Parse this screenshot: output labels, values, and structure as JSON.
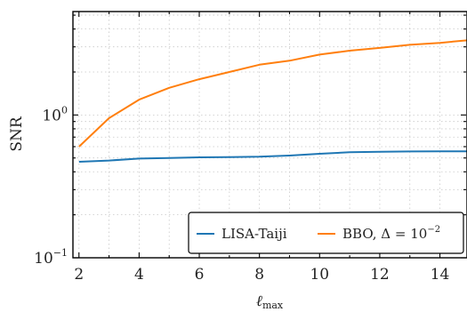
{
  "chart_data": {
    "type": "line",
    "xlabel_base": "ℓ",
    "xlabel_sub": "max",
    "ylabel": "SNR",
    "xlim": [
      1.8,
      14.9
    ],
    "ylim": [
      0.1,
      5.3
    ],
    "yscale": "log",
    "xticks": [
      2,
      4,
      6,
      8,
      10,
      12,
      14
    ],
    "yticks": [
      {
        "value": 0.1,
        "base": "10",
        "exp": "−1"
      },
      {
        "value": 1,
        "base": "10",
        "exp": "0"
      }
    ],
    "grid": true,
    "legend_position": "lower-right",
    "series": [
      {
        "name": "LISA-Taiji",
        "color": "#1f77b4",
        "x": [
          2,
          3,
          4,
          5,
          6,
          7,
          8,
          9,
          10,
          11,
          12,
          13,
          14,
          15
        ],
        "y": [
          0.47,
          0.48,
          0.495,
          0.5,
          0.505,
          0.507,
          0.51,
          0.52,
          0.535,
          0.548,
          0.553,
          0.555,
          0.556,
          0.557
        ]
      },
      {
        "name_prefix": "BBO, Δ = 10",
        "name_exp": "−2",
        "color": "#ff7f0e",
        "x": [
          2,
          3,
          4,
          5,
          6,
          7,
          8,
          9,
          10,
          11,
          12,
          13,
          14,
          15
        ],
        "y": [
          0.6,
          0.95,
          1.28,
          1.55,
          1.78,
          2.0,
          2.25,
          2.4,
          2.65,
          2.82,
          2.95,
          3.1,
          3.2,
          3.35
        ]
      }
    ]
  }
}
